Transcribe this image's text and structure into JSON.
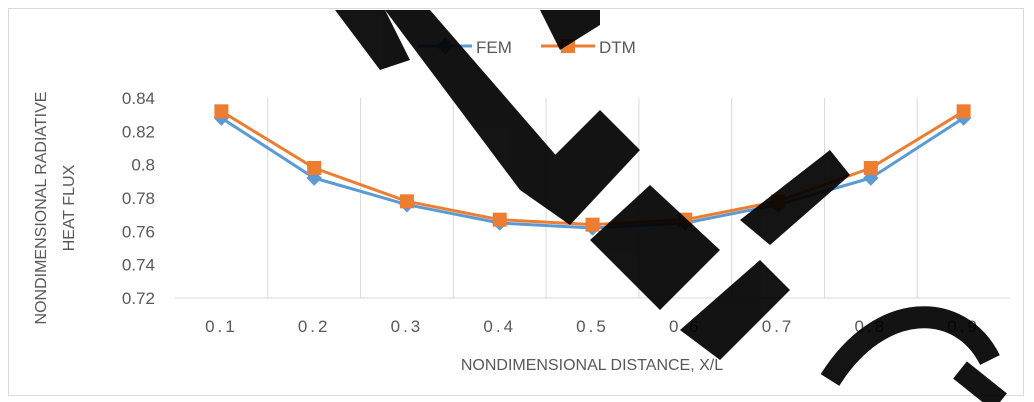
{
  "chart_data": {
    "type": "line",
    "categories": [
      "0.1",
      "0.2",
      "0.3",
      "0.4",
      "0.5",
      "0.6",
      "0.7",
      "0.8",
      "0.9"
    ],
    "series": [
      {
        "name": "FEM",
        "color": "#5b9bd5",
        "marker": "diamond",
        "values": [
          0.828,
          0.792,
          0.776,
          0.765,
          0.762,
          0.765,
          0.776,
          0.792,
          0.828
        ]
      },
      {
        "name": "DTM",
        "color": "#ed7d31",
        "marker": "square",
        "values": [
          0.832,
          0.798,
          0.778,
          0.767,
          0.764,
          0.767,
          0.778,
          0.798,
          0.832
        ]
      }
    ],
    "xlabel": "NONDIMENSIONAL DISTANCE, X/L",
    "ylabel_line1": "NONDIMENSIONAL RADIATIVE",
    "ylabel_line2": "HEAT FLUX",
    "ylim": [
      0.72,
      0.84
    ],
    "yticks": [
      "0.72",
      "0.74",
      "0.76",
      "0.78",
      "0.8",
      "0.82",
      "0.84"
    ],
    "grid": "vertical",
    "legend_position": "top"
  }
}
